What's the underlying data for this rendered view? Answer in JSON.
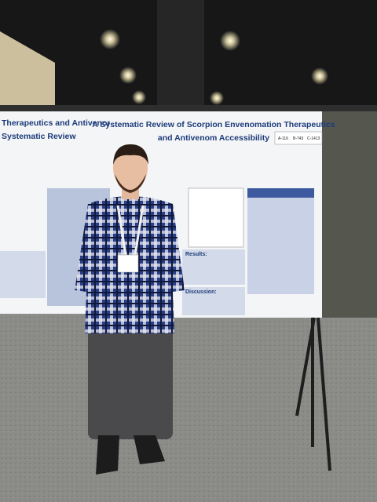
{
  "poster_left": {
    "title_lines": [
      "Therapeutics and Antivenom",
      "Systematic Review"
    ]
  },
  "poster_right": {
    "title_lines": [
      "A Systematic Review of Scorpion Envenomation Therapeutics",
      "and Antivenom Accessibility"
    ],
    "sections": [
      "Results:",
      "Discussion:"
    ]
  },
  "board_number": [
    "A-116",
    "B-743",
    "C-1413"
  ]
}
